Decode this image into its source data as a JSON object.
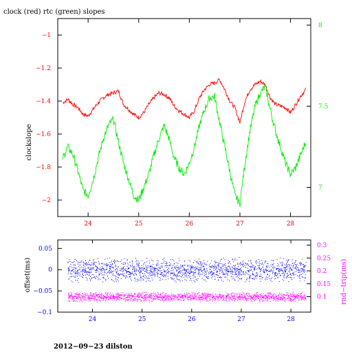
{
  "chart_data": [
    {
      "type": "line",
      "title": "clock (red) rtc (green) slopes",
      "ylabel": "clockslope",
      "y2label": "",
      "xlim": [
        23.4,
        28.4
      ],
      "ylim": [
        -2.1,
        -0.9
      ],
      "y2lim": [
        6.82,
        8.04
      ],
      "x_ticks": [
        24,
        25,
        26,
        27,
        28
      ],
      "y_ticks": [
        -1,
        -1.2,
        -1.4,
        -1.6,
        -1.8,
        -2
      ],
      "y2_ticks": [
        8,
        7.5,
        7
      ],
      "grid": false,
      "colors": {
        "clock": "#ff0000",
        "rtc": "#00ee00",
        "frame": "#000000",
        "xtick": "#dd0000"
      },
      "series": [
        {
          "axis": "left",
          "x": [
            23.5,
            23.6,
            23.7,
            23.8,
            23.9,
            24.0,
            24.1,
            24.2,
            24.3,
            24.4,
            24.5,
            24.6,
            24.7,
            24.8,
            24.9,
            25.0,
            25.1,
            25.2,
            25.3,
            25.4,
            25.5,
            25.6,
            25.7,
            25.8,
            25.9,
            26.0,
            26.1,
            26.2,
            26.3,
            26.4,
            26.5,
            26.6,
            26.7,
            26.8,
            26.9,
            27.0,
            27.1,
            27.2,
            27.3,
            27.4,
            27.5,
            27.6,
            27.7,
            27.8,
            27.9,
            28.0,
            28.1,
            28.2,
            28.3
          ],
          "y": [
            -1.41,
            -1.39,
            -1.42,
            -1.44,
            -1.48,
            -1.49,
            -1.45,
            -1.41,
            -1.38,
            -1.36,
            -1.35,
            -1.34,
            -1.42,
            -1.45,
            -1.48,
            -1.5,
            -1.47,
            -1.42,
            -1.38,
            -1.35,
            -1.36,
            -1.38,
            -1.43,
            -1.46,
            -1.48,
            -1.5,
            -1.46,
            -1.38,
            -1.33,
            -1.3,
            -1.29,
            -1.27,
            -1.33,
            -1.4,
            -1.44,
            -1.53,
            -1.4,
            -1.33,
            -1.3,
            -1.28,
            -1.3,
            -1.38,
            -1.42,
            -1.43,
            -1.44,
            -1.47,
            -1.42,
            -1.37,
            -1.33
          ]
        },
        {
          "axis": "right",
          "x": [
            23.5,
            23.6,
            23.7,
            23.8,
            23.9,
            24.0,
            24.1,
            24.2,
            24.3,
            24.4,
            24.5,
            24.6,
            24.7,
            24.8,
            24.9,
            25.0,
            25.1,
            25.2,
            25.3,
            25.4,
            25.5,
            25.6,
            25.7,
            25.8,
            25.9,
            26.0,
            26.1,
            26.2,
            26.3,
            26.4,
            26.5,
            26.6,
            26.7,
            26.8,
            26.9,
            27.0,
            27.1,
            27.2,
            27.3,
            27.4,
            27.5,
            27.6,
            27.7,
            27.8,
            27.9,
            28.0,
            28.1,
            28.2,
            28.3
          ],
          "y": [
            7.18,
            7.25,
            7.2,
            7.1,
            6.98,
            6.95,
            7.05,
            7.18,
            7.3,
            7.38,
            7.42,
            7.28,
            7.15,
            7.05,
            6.95,
            6.92,
            7.0,
            7.08,
            7.2,
            7.3,
            7.38,
            7.3,
            7.18,
            7.12,
            7.08,
            7.15,
            7.25,
            7.38,
            7.48,
            7.55,
            7.56,
            7.4,
            7.25,
            7.1,
            6.95,
            6.9,
            7.15,
            7.35,
            7.5,
            7.58,
            7.62,
            7.48,
            7.35,
            7.25,
            7.15,
            7.08,
            7.12,
            7.2,
            7.28
          ]
        }
      ]
    },
    {
      "type": "scatter",
      "ylabel": "offset(ms)",
      "y2label": "rnd−trip(ms)",
      "xlim": [
        23.3,
        28.4
      ],
      "ylim": [
        -0.1,
        0.07
      ],
      "y2lim": [
        0.04,
        0.32
      ],
      "x_ticks": [
        24,
        25,
        26,
        27,
        28
      ],
      "y_ticks": [
        0.05,
        0,
        -0.05,
        -0.1
      ],
      "y_tick_labels": [
        "0.05",
        "0",
        "−0.05",
        "−0.1"
      ],
      "y2_ticks": [
        0.3,
        0.25,
        0.2,
        0.15,
        0.1
      ],
      "grid": false,
      "colors": {
        "offset": "#0000ff",
        "rndtrip": "#ff00ff"
      },
      "series": [
        {
          "axis": "left",
          "x_range": [
            23.5,
            28.3
          ],
          "center": 0.0,
          "band": 0.03
        },
        {
          "axis": "right",
          "x_range": [
            23.5,
            28.3
          ],
          "center": 0.1,
          "band": 0.02
        }
      ]
    }
  ],
  "footer": "2012−09−23 dilston"
}
